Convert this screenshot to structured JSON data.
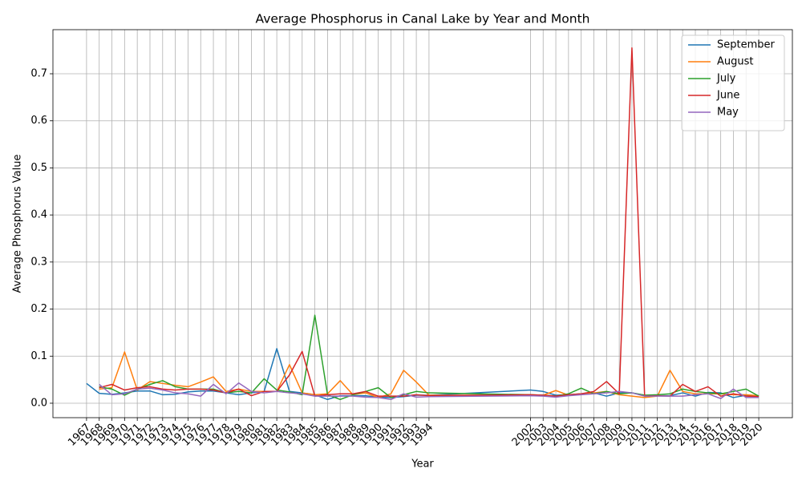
{
  "chart_data": {
    "type": "line",
    "title": "Average Phosphorus in Canal Lake by Year and Month",
    "x_label": "Year",
    "y_label": "Average Phosphorus Value",
    "x": [
      1967,
      1968,
      1969,
      1970,
      1971,
      1972,
      1973,
      1974,
      1975,
      1976,
      1977,
      1978,
      1979,
      1980,
      1981,
      1982,
      1983,
      1984,
      1985,
      1986,
      1987,
      1988,
      1989,
      1990,
      1991,
      1992,
      1993,
      1994,
      2002,
      2003,
      2004,
      2005,
      2006,
      2007,
      2008,
      2009,
      2010,
      2011,
      2012,
      2013,
      2014,
      2015,
      2016,
      2017,
      2018,
      2019,
      2020
    ],
    "xticks": [
      1967,
      1968,
      1969,
      1970,
      1971,
      1972,
      1973,
      1974,
      1975,
      1976,
      1977,
      1978,
      1979,
      1980,
      1981,
      1982,
      1983,
      1984,
      1985,
      1986,
      1987,
      1988,
      1989,
      1990,
      1991,
      1992,
      1993,
      1994,
      2002,
      2003,
      2004,
      2005,
      2006,
      2007,
      2008,
      2009,
      2010,
      2011,
      2012,
      2013,
      2014,
      2015,
      2016,
      2017,
      2018,
      2019,
      2020
    ],
    "xlim": [
      1964.35,
      2022.65
    ],
    "ylim": [
      -0.0307,
      0.7937
    ],
    "yticks": [
      {
        "value": 0,
        "label": "0.0"
      },
      0.1,
      0.2,
      0.3,
      0.4,
      0.5,
      0.6,
      0.7
    ],
    "grid": true,
    "legend": "upper right",
    "series": [
      {
        "name": "September",
        "color": "#1f77b4",
        "values": [
          0.042,
          0.021,
          0.019,
          0.022,
          0.026,
          0.026,
          0.018,
          0.019,
          0.024,
          0.026,
          0.026,
          0.022,
          0.018,
          0.022,
          0.025,
          0.116,
          0.025,
          0.022,
          0.018,
          0.008,
          0.016,
          0.016,
          0.016,
          0.013,
          0.012,
          0.014,
          0.017,
          0.017,
          0.028,
          0.025,
          0.017,
          0.018,
          0.02,
          0.022,
          0.015,
          0.022,
          0.022,
          0.017,
          0.016,
          0.016,
          0.022,
          0.015,
          0.023,
          0.022,
          0.012,
          0.017,
          0.015
        ]
      },
      {
        "name": "August",
        "color": "#ff7f0e",
        "values": [
          null,
          0.03,
          0.033,
          0.109,
          0.028,
          0.046,
          0.042,
          0.038,
          0.035,
          0.045,
          0.056,
          0.025,
          0.03,
          0.025,
          0.025,
          0.025,
          0.082,
          0.022,
          0.018,
          0.02,
          0.048,
          0.018,
          0.022,
          0.012,
          0.02,
          0.07,
          0.045,
          0.017,
          0.017,
          0.017,
          0.027,
          0.017,
          0.02,
          0.022,
          0.025,
          0.018,
          0.015,
          0.012,
          0.015,
          0.07,
          0.025,
          0.02,
          0.02,
          0.02,
          0.018,
          0.018,
          0.016
        ]
      },
      {
        "name": "July",
        "color": "#2ca02c",
        "values": [
          null,
          0.035,
          0.03,
          0.017,
          0.03,
          0.04,
          0.048,
          0.035,
          0.03,
          0.03,
          0.03,
          0.022,
          0.025,
          0.022,
          0.052,
          0.028,
          0.024,
          0.018,
          0.187,
          0.018,
          0.008,
          0.018,
          0.025,
          0.033,
          0.012,
          0.018,
          0.025,
          0.022,
          0.018,
          0.017,
          0.015,
          0.02,
          0.032,
          0.02,
          0.025,
          0.02,
          0.022,
          0.017,
          0.018,
          0.02,
          0.03,
          0.025,
          0.022,
          0.02,
          0.025,
          0.03,
          0.015
        ]
      },
      {
        "name": "June",
        "color": "#d62728",
        "values": [
          null,
          0.033,
          0.04,
          0.028,
          0.033,
          0.035,
          0.03,
          0.028,
          0.03,
          0.03,
          0.028,
          0.022,
          0.03,
          0.016,
          0.025,
          0.025,
          0.06,
          0.11,
          0.015,
          0.018,
          0.02,
          0.02,
          0.025,
          0.015,
          0.015,
          0.015,
          0.018,
          0.016,
          0.018,
          0.017,
          0.015,
          0.018,
          0.02,
          0.025,
          0.046,
          0.02,
          0.755,
          0.015,
          0.016,
          0.015,
          0.04,
          0.025,
          0.035,
          0.015,
          0.02,
          0.015,
          0.014
        ]
      },
      {
        "name": "May",
        "color": "#9467bd",
        "values": [
          null,
          0.04,
          0.018,
          0.02,
          0.03,
          0.032,
          0.028,
          0.022,
          0.02,
          0.015,
          0.04,
          0.02,
          0.043,
          0.025,
          0.022,
          0.025,
          0.022,
          0.02,
          0.015,
          0.015,
          0.015,
          0.015,
          0.013,
          0.012,
          0.008,
          0.02,
          0.013,
          0.014,
          0.016,
          0.015,
          0.013,
          0.016,
          0.018,
          0.02,
          0.022,
          0.025,
          0.022,
          0.015,
          0.015,
          0.015,
          0.015,
          0.018,
          0.02,
          0.01,
          0.03,
          0.012,
          0.012
        ]
      }
    ]
  }
}
